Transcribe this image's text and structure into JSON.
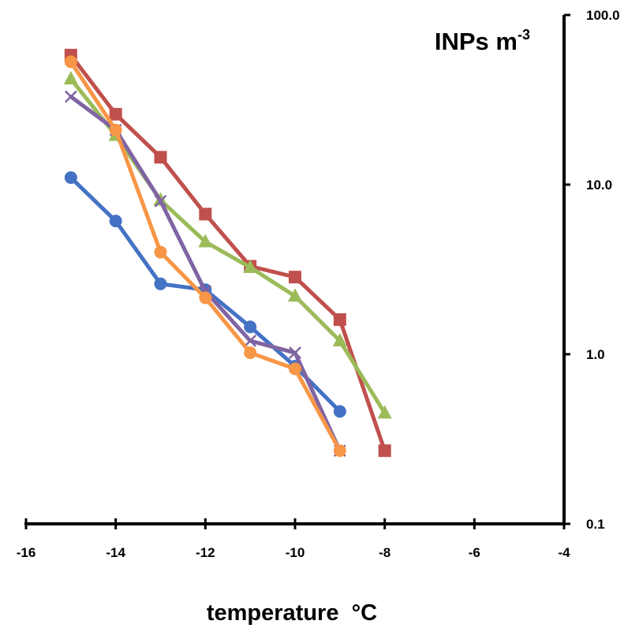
{
  "chart_data": {
    "type": "line",
    "xlabel": "temperature  °C",
    "ylabel_base": "INPs m",
    "ylabel_exp": "-3",
    "xlim": [
      -16,
      -4
    ],
    "ylim": [
      0.1,
      100
    ],
    "yscale": "log",
    "x_ticks": [
      "-16",
      "-14",
      "-12",
      "-10",
      "-8",
      "-6",
      "-4"
    ],
    "y_ticks": [
      "0.1",
      "1.0",
      "10.0",
      "100.0"
    ],
    "y_axis_position": "right",
    "grid": false,
    "legend": "none",
    "series": [
      {
        "color": "#4472C4",
        "marker": "circle",
        "x": [
          -15,
          -14,
          -13,
          -12,
          -11,
          -10,
          -9
        ],
        "y": [
          11,
          6.1,
          2.6,
          2.4,
          1.45,
          0.85,
          0.46
        ]
      },
      {
        "color": "#C0504D",
        "marker": "square",
        "x": [
          -15,
          -14,
          -13,
          -12,
          -11,
          -10,
          -9,
          -8
        ],
        "y": [
          58,
          26,
          14.5,
          6.7,
          3.3,
          2.85,
          1.6,
          0.27
        ]
      },
      {
        "color": "#9BBB59",
        "marker": "triangle",
        "x": [
          -15,
          -14,
          -13,
          -12,
          -11,
          -10,
          -9,
          -8
        ],
        "y": [
          42,
          19.5,
          8.1,
          4.6,
          3.25,
          2.2,
          1.2,
          0.45
        ]
      },
      {
        "color": "#8064A2",
        "marker": "x",
        "x": [
          -15,
          -14,
          -13,
          -12,
          -11,
          -10,
          -9
        ],
        "y": [
          33,
          21,
          8.0,
          2.35,
          1.2,
          1.02,
          0.27
        ]
      },
      {
        "color": "#F79646",
        "marker": "circle",
        "x": [
          -15,
          -14,
          -13,
          -12,
          -11,
          -10,
          -9
        ],
        "y": [
          53,
          21,
          4.0,
          2.15,
          1.02,
          0.82,
          0.27
        ]
      }
    ]
  }
}
